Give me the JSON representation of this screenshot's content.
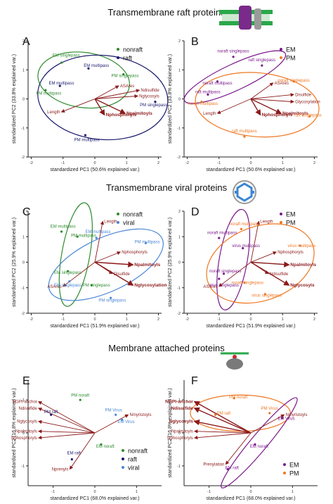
{
  "titles": {
    "raft": "Transmembrane raft proteins",
    "viral": "Transmembrane viral proteins",
    "attached": "Membrane attached proteins"
  },
  "colors": {
    "nonraft": "#2e8b2e",
    "raft": "#1a1a6e",
    "viral": "#4a86d4",
    "EM": "#7a1a8a",
    "PM": "#ee7722",
    "arrow": "#8b1a1a"
  },
  "icons": [
    "membrane-raft-icon",
    "viral-capsid-icon",
    "membrane-attached-protein-icon"
  ],
  "chart_data": [
    {
      "panel": "A",
      "type": "scatter",
      "xlabel": "standardized PC1 (50.6% explained var.)",
      "ylabel": "standardized PC2 (33.8% explained var.)",
      "xlim": [
        -2.1,
        2.1
      ],
      "ylim": [
        -2.0,
        2.0
      ],
      "xticks": [
        -2,
        -1,
        0,
        1,
        2
      ],
      "yticks": [
        -2,
        -1,
        0,
        1,
        2
      ],
      "legend": [
        {
          "name": "nonraft",
          "color": "#2e8b2e"
        },
        {
          "name": "raft",
          "color": "#1a1a6e"
        }
      ],
      "points": [
        {
          "label": "EM singlepass",
          "x": -1.05,
          "y": 1.25,
          "group": "nonraft",
          "lx": -0.9,
          "ly": 1.45
        },
        {
          "label": "EM multipass",
          "x": -0.2,
          "y": 1.05,
          "group": "raft",
          "lx": 0.05,
          "ly": 1.1
        },
        {
          "label": "PM singlepass",
          "x": 0.9,
          "y": 0.85,
          "group": "nonraft",
          "lx": 0.95,
          "ly": 0.75
        },
        {
          "label": "EM multipass",
          "x": -1.1,
          "y": 0.45,
          "group": "raft",
          "lx": -1.05,
          "ly": 0.5
        },
        {
          "label": "PM multipass",
          "x": -1.55,
          "y": 0.3,
          "group": "nonraft",
          "lx": -1.45,
          "ly": 0.15
        },
        {
          "label": "PM singlepass",
          "x": 1.9,
          "y": -0.1,
          "group": "raft",
          "lx": 1.85,
          "ly": -0.25
        },
        {
          "label": "PM multipass",
          "x": -0.3,
          "y": -1.25,
          "group": "raft",
          "lx": -0.25,
          "ly": -1.45
        }
      ],
      "arrows": [
        {
          "label": "ASAres",
          "x": 0.75,
          "y": 0.45,
          "bold": false
        },
        {
          "label": "Ndisulfide",
          "x": 1.4,
          "y": 0.3,
          "bold": false
        },
        {
          "label": "Nglycosyls",
          "x": 1.35,
          "y": 0.1,
          "bold": false
        },
        {
          "label": "Npalmitoyls",
          "x": 0.95,
          "y": -0.5,
          "bold": true
        },
        {
          "label": "Nphosphoryls",
          "x": 0.3,
          "y": -0.55,
          "bold": true
        },
        {
          "label": "Length",
          "x": -1.05,
          "y": -0.45,
          "bold": false
        }
      ],
      "ellipses": [
        {
          "group": "nonraft",
          "cx": -0.35,
          "cy": 0.65,
          "rx": 1.45,
          "ry": 0.95,
          "angle": -8
        },
        {
          "group": "raft",
          "cx": 0.25,
          "cy": 0.05,
          "rx": 2.05,
          "ry": 1.45,
          "angle": -5
        }
      ]
    },
    {
      "panel": "B",
      "type": "scatter",
      "xlabel": "standardized PC1 (50.6% explained var.)",
      "ylabel": "standardized PC2 (33.8% explained var.)",
      "xlim": [
        -2.1,
        2.1
      ],
      "ylim": [
        -2.0,
        2.0
      ],
      "xticks": [
        -2,
        -1,
        0,
        1,
        2
      ],
      "yticks": [
        -2,
        -1,
        0,
        1,
        2
      ],
      "legend": [
        {
          "name": "EM",
          "color": "#7a1a8a"
        },
        {
          "name": "PM",
          "color": "#ee7722"
        }
      ],
      "points": [
        {
          "label": "noraft singlepass",
          "x": -0.55,
          "y": 1.45,
          "group": "EM",
          "lx": -0.55,
          "ly": 1.6
        },
        {
          "label": "raft singlepass",
          "x": 0.35,
          "y": 1.15,
          "group": "EM",
          "lx": 0.35,
          "ly": 1.3
        },
        {
          "label": "noraft multipass",
          "x": -1.05,
          "y": 0.6,
          "group": "EM",
          "lx": -1.05,
          "ly": 0.5
        },
        {
          "label": "raft multipass",
          "x": -1.35,
          "y": 0.15,
          "group": "EM",
          "lx": -1.35,
          "ly": 0.2
        },
        {
          "label": "noraft multipass",
          "x": -1.55,
          "y": -0.1,
          "group": "PM",
          "lx": -1.5,
          "ly": -0.2
        },
        {
          "label": "noraft singlepass",
          "x": 1.35,
          "y": 0.6,
          "group": "PM",
          "lx": 1.35,
          "ly": 0.6
        },
        {
          "label": "raft singlepass",
          "x": 1.85,
          "y": -0.6,
          "group": "PM",
          "lx": 1.8,
          "ly": -0.6
        },
        {
          "label": "raft multipass",
          "x": -0.2,
          "y": -1.3,
          "group": "PM",
          "lx": -0.2,
          "ly": -1.15
        }
      ],
      "arrows": [
        {
          "label": "ASAres",
          "x": 0.7,
          "y": 0.55,
          "bold": false
        },
        {
          "label": "Disulfide",
          "x": 1.35,
          "y": 0.15,
          "bold": false
        },
        {
          "label": "Glycosylation",
          "x": 1.35,
          "y": -0.1,
          "bold": false
        },
        {
          "label": "Npalmitoyls",
          "x": 0.95,
          "y": -0.5,
          "bold": true
        },
        {
          "label": "Nphosphoryls",
          "x": 0.3,
          "y": -0.55,
          "bold": true
        },
        {
          "label": "Length",
          "x": -1.05,
          "y": -0.5,
          "bold": false
        }
      ],
      "ellipses": [
        {
          "group": "EM",
          "cx": -0.5,
          "cy": 0.75,
          "rx": 1.75,
          "ry": 0.45,
          "angle": 25
        },
        {
          "group": "PM",
          "cx": 0.2,
          "cy": -0.2,
          "rx": 1.95,
          "ry": 1.1,
          "angle": -5
        }
      ]
    },
    {
      "panel": "C",
      "type": "scatter",
      "xlabel": "standardized PC1 (51.9% explained var.)",
      "ylabel": "standardized PC2 (25.9% explained var.)",
      "xlim": [
        -2.1,
        2.1
      ],
      "ylim": [
        -2.0,
        2.0
      ],
      "xticks": [
        -2,
        -1,
        0,
        1,
        2
      ],
      "yticks": [
        -2,
        -1,
        0,
        1,
        2
      ],
      "legend": [
        {
          "name": "nonraft",
          "color": "#2e8b2e"
        },
        {
          "name": "viral",
          "color": "#4a86d4"
        }
      ],
      "points": [
        {
          "label": "EM multipass",
          "x": -1.05,
          "y": 1.2,
          "group": "nonraft",
          "lx": -1.0,
          "ly": 1.35
        },
        {
          "label": "PM multipass",
          "x": -0.55,
          "y": 1.0,
          "group": "nonraft",
          "lx": -0.35,
          "ly": 1.0
        },
        {
          "label": "EM multipass",
          "x": 0.05,
          "y": 0.95,
          "group": "viral",
          "lx": 0.1,
          "ly": 1.15
        },
        {
          "label": "PM multipass",
          "x": 1.6,
          "y": 0.75,
          "group": "viral",
          "lx": 1.65,
          "ly": 0.75
        },
        {
          "label": "EM singlepass",
          "x": -0.85,
          "y": -0.35,
          "group": "nonraft",
          "lx": -0.85,
          "ly": -0.45
        },
        {
          "label": "EM singlepass",
          "x": -0.8,
          "y": -0.75,
          "group": "viral",
          "lx": -0.85,
          "ly": -0.95
        },
        {
          "label": "PM singlepass",
          "x": -0.1,
          "y": -0.9,
          "group": "nonraft",
          "lx": 0.05,
          "ly": -0.95
        },
        {
          "label": "PM singlepass",
          "x": 0.5,
          "y": -1.4,
          "group": "viral",
          "lx": 0.55,
          "ly": -1.55
        }
      ],
      "arrows": [
        {
          "label": "Length",
          "x": 0.25,
          "y": 1.6,
          "bold": false
        },
        {
          "label": "Nphosphoryls",
          "x": 0.8,
          "y": 0.4,
          "bold": false
        },
        {
          "label": "Npalmitoyls",
          "x": 1.2,
          "y": -0.1,
          "bold": true
        },
        {
          "label": "Disulfide",
          "x": 0.55,
          "y": -0.45,
          "bold": false
        },
        {
          "label": "Nglycosylation",
          "x": 1.2,
          "y": -0.9,
          "bold": true
        },
        {
          "label": "ASAres",
          "x": -1.0,
          "y": -0.95,
          "bold": false
        }
      ],
      "ellipses": [
        {
          "group": "nonraft",
          "cx": -0.6,
          "cy": 0.3,
          "rx": 1.65,
          "ry": 0.55,
          "angle": 80
        },
        {
          "group": "viral",
          "cx": 0.35,
          "cy": -0.1,
          "rx": 1.95,
          "ry": 1.05,
          "angle": 25
        }
      ]
    },
    {
      "panel": "D",
      "type": "scatter",
      "xlabel": "standardized PC1 (51.9% explained var.)",
      "ylabel": "standardized PC2 (25.9% explained var.)",
      "xlim": [
        -2.1,
        2.1
      ],
      "ylim": [
        -2.0,
        2.0
      ],
      "xticks": [
        -2,
        -1,
        0,
        1,
        2
      ],
      "yticks": [
        -2,
        -1,
        0,
        1,
        2
      ],
      "legend": [
        {
          "name": "EM",
          "color": "#7a1a8a"
        },
        {
          "name": "PM",
          "color": "#ee7722"
        }
      ],
      "points": [
        {
          "label": "noraft multipass",
          "x": -0.3,
          "y": 1.3,
          "group": "PM",
          "lx": -0.2,
          "ly": 1.45
        },
        {
          "label": "noraft multipass",
          "x": -1.0,
          "y": 0.95,
          "group": "EM",
          "lx": -0.9,
          "ly": 1.1
        },
        {
          "label": "virus multipass",
          "x": -0.25,
          "y": 0.55,
          "group": "EM",
          "lx": -0.15,
          "ly": 0.6
        },
        {
          "label": "virus multipass",
          "x": 1.55,
          "y": 0.65,
          "group": "PM",
          "lx": 1.6,
          "ly": 0.6
        },
        {
          "label": "noraft singlepass",
          "x": -0.85,
          "y": -0.45,
          "group": "EM",
          "lx": -0.8,
          "ly": -0.4
        },
        {
          "label": "noraft singlepass",
          "x": -0.2,
          "y": -0.8,
          "group": "PM",
          "lx": -0.1,
          "ly": -0.85
        },
        {
          "label": "virus singlepass",
          "x": -1.0,
          "y": -0.65,
          "group": "EM",
          "lx": -0.85,
          "ly": -0.95
        },
        {
          "label": "virus singlepass",
          "x": 0.45,
          "y": -1.25,
          "group": "PM",
          "lx": 0.5,
          "ly": -1.35
        }
      ],
      "arrows": [
        {
          "label": "Length",
          "x": 0.25,
          "y": 1.6,
          "bold": false
        },
        {
          "label": "Nphosphoryls",
          "x": 0.8,
          "y": 0.4,
          "bold": false
        },
        {
          "label": "Npalmitoyls",
          "x": 1.2,
          "y": -0.1,
          "bold": true
        },
        {
          "label": "Ndisulfide",
          "x": 0.55,
          "y": -0.45,
          "bold": false
        },
        {
          "label": "Nglycosyls",
          "x": 1.2,
          "y": -0.9,
          "bold": true
        },
        {
          "label": "ASAres",
          "x": -1.0,
          "y": -0.95,
          "bold": false
        }
      ],
      "ellipses": [
        {
          "group": "EM",
          "cx": -0.55,
          "cy": 0.1,
          "rx": 1.6,
          "ry": 0.55,
          "angle": 80
        },
        {
          "group": "PM",
          "cx": 0.3,
          "cy": -0.05,
          "rx": 1.75,
          "ry": 1.45,
          "angle": 20
        }
      ]
    },
    {
      "panel": "E",
      "type": "scatter",
      "xlabel": "standardized PC1 (68.0% explained var.)",
      "ylabel": "standardized PC2 (16.8% explained var.)",
      "xlim": [
        -1.6,
        1.6
      ],
      "ylim": [
        -1.6,
        1.6
      ],
      "xticks": [
        -1,
        0,
        1
      ],
      "yticks": [
        -1,
        0,
        1
      ],
      "legend": [
        {
          "name": "nonraft",
          "color": "#2e8b2e"
        },
        {
          "name": "raft",
          "color": "#1a1a6e"
        },
        {
          "name": "viral",
          "color": "#4a86d4"
        }
      ],
      "points": [
        {
          "label": "PM noraft",
          "x": -0.35,
          "y": 1.0,
          "group": "nonraft",
          "lx": -0.35,
          "ly": 1.1
        },
        {
          "label": "PM raft",
          "x": -1.05,
          "y": 0.55,
          "group": "raft",
          "lx": -1.05,
          "ly": 0.6
        },
        {
          "label": "EM raft",
          "x": -0.55,
          "y": -0.8,
          "group": "raft",
          "lx": -0.5,
          "ly": -0.65
        },
        {
          "label": "PM Virus",
          "x": 0.5,
          "y": 0.55,
          "group": "viral",
          "lx": 0.45,
          "ly": 0.65
        },
        {
          "label": "EM Virus",
          "x": 0.65,
          "y": 0.4,
          "group": "viral",
          "lx": 0.75,
          "ly": 0.3
        },
        {
          "label": "EM noraft",
          "x": 0.15,
          "y": -0.35,
          "group": "nonraft",
          "lx": 0.25,
          "ly": -0.45
        }
      ],
      "arrows": [
        {
          "label": "NGPI-anchor",
          "x": -1.35,
          "y": 0.95,
          "bold": false
        },
        {
          "label": "Ndisulfide",
          "x": -1.35,
          "y": 0.75,
          "bold": false
        },
        {
          "label": "Nglycosyls",
          "x": -1.35,
          "y": 0.35,
          "bold": false
        },
        {
          "label": "Npalmitoyls",
          "x": -1.35,
          "y": 0.05,
          "bold": false
        },
        {
          "label": "Nphosphoryls",
          "x": -1.35,
          "y": -0.15,
          "bold": false
        },
        {
          "label": "Nmyristoyls",
          "x": 0.8,
          "y": 0.55,
          "bold": false
        },
        {
          "label": "Nprenyls",
          "x": -0.6,
          "y": -1.1,
          "bold": false
        }
      ],
      "ellipses": []
    },
    {
      "panel": "F",
      "type": "scatter",
      "xlabel": "standardized PC1 (68.0% explained var.)",
      "ylabel": "standardized PC2 (16.8% explained var.)",
      "xlim": [
        -1.6,
        1.6
      ],
      "ylim": [
        -1.6,
        1.6
      ],
      "xticks": [
        -1,
        0,
        1
      ],
      "yticks": [
        -1,
        0,
        1
      ],
      "legend": [
        {
          "name": "EM",
          "color": "#7a1a8a"
        },
        {
          "name": "PM",
          "color": "#ee7722"
        }
      ],
      "points": [
        {
          "label": "PM noraft",
          "x": -0.4,
          "y": 1.05,
          "group": "PM",
          "lx": -0.3,
          "ly": 1.05
        },
        {
          "label": "PM raft",
          "x": -0.85,
          "y": 0.55,
          "group": "PM",
          "lx": -0.65,
          "ly": 0.55
        },
        {
          "label": "PM Virus",
          "x": 0.45,
          "y": 0.6,
          "group": "PM",
          "lx": 0.45,
          "ly": 0.7
        },
        {
          "label": "EM Virus",
          "x": 0.75,
          "y": 0.45,
          "group": "EM",
          "lx": 0.85,
          "ly": 0.4
        },
        {
          "label": "EM noraft",
          "x": 0.1,
          "y": -0.35,
          "group": "EM",
          "lx": 0.2,
          "ly": -0.45
        },
        {
          "label": "EM raft",
          "x": -0.55,
          "y": -1.1,
          "group": "EM",
          "lx": -0.45,
          "ly": -1.1
        }
      ],
      "arrows": [
        {
          "label": "NGPI-anchor",
          "x": -1.35,
          "y": 0.95,
          "bold": true
        },
        {
          "label": "Ndisulfide",
          "x": -1.35,
          "y": 0.75,
          "bold": true
        },
        {
          "label": "Nglycosyls",
          "x": -1.35,
          "y": 0.35,
          "bold": true
        },
        {
          "label": "Npalmitoyls",
          "x": -1.35,
          "y": 0.05,
          "bold": false
        },
        {
          "label": "Nphosphoryls",
          "x": -1.35,
          "y": -0.15,
          "bold": false
        },
        {
          "label": "Nmyristoyls",
          "x": 0.8,
          "y": 0.55,
          "bold": false
        },
        {
          "label": "Prenylation",
          "x": -0.6,
          "y": -0.95,
          "bold": false
        }
      ],
      "ellipses": [
        {
          "group": "PM",
          "cx": -0.25,
          "cy": 0.6,
          "rx": 1.2,
          "ry": 0.55,
          "angle": 0
        },
        {
          "group": "EM",
          "cx": 0.2,
          "cy": -0.3,
          "rx": 1.4,
          "ry": 0.25,
          "angle": 50
        }
      ]
    }
  ]
}
